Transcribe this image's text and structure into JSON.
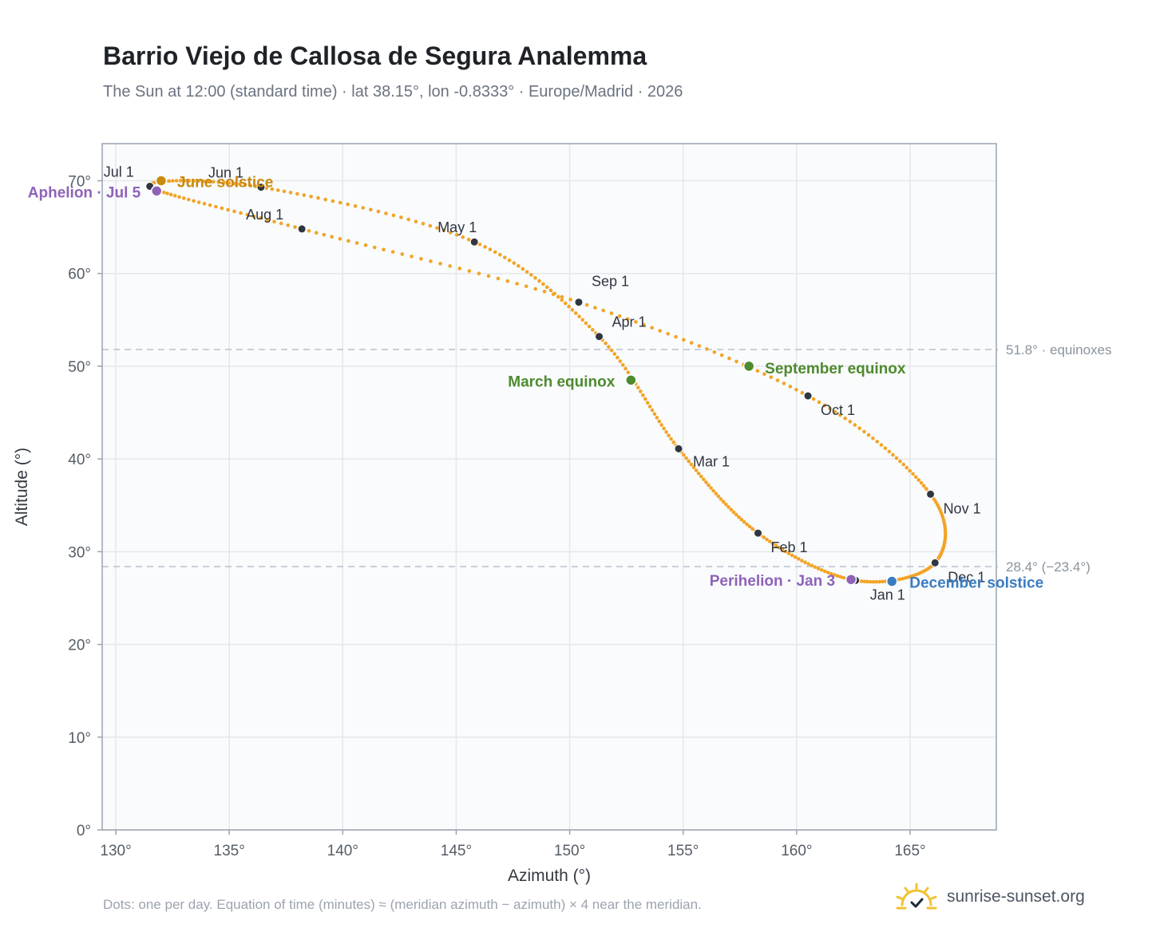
{
  "header": {
    "title": "Barrio Viejo de Callosa de Segura Analemma",
    "subtitle": "The Sun at 12:00 (standard time) · lat 38.15°, lon -0.8333° · Europe/Madrid · 2026"
  },
  "chart_data": {
    "type": "scatter",
    "xlabel": "Azimuth (°)",
    "ylabel": "Altitude (°)",
    "xlim": [
      129.4,
      168.8
    ],
    "ylim": [
      0,
      74
    ],
    "xticks": [
      130,
      135,
      140,
      145,
      150,
      155,
      160,
      165
    ],
    "yticks": [
      0,
      10,
      20,
      30,
      40,
      50,
      60,
      70
    ],
    "tick_suffix": "°",
    "grid": true,
    "curve": {
      "x": [
        162.6,
        158.3,
        154.8,
        151.3,
        145.8,
        136.4,
        131.5,
        138.2,
        150.4,
        160.5,
        165.9,
        166.1
      ],
      "y": [
        26.9,
        32.0,
        41.1,
        53.2,
        63.4,
        69.3,
        69.4,
        64.8,
        56.9,
        46.8,
        36.2,
        28.8
      ]
    },
    "months": [
      {
        "label": "Jan 1",
        "x": 162.6,
        "y": 26.9
      },
      {
        "label": "Feb 1",
        "x": 158.3,
        "y": 32.0
      },
      {
        "label": "Mar 1",
        "x": 154.8,
        "y": 41.1
      },
      {
        "label": "Apr 1",
        "x": 151.3,
        "y": 53.2
      },
      {
        "label": "May 1",
        "x": 145.8,
        "y": 63.4
      },
      {
        "label": "Jun 1",
        "x": 136.4,
        "y": 69.3
      },
      {
        "label": "Jul 1",
        "x": 131.5,
        "y": 69.4
      },
      {
        "label": "Aug 1",
        "x": 138.2,
        "y": 64.8
      },
      {
        "label": "Sep 1",
        "x": 150.4,
        "y": 56.9
      },
      {
        "label": "Oct 1",
        "x": 160.5,
        "y": 46.8
      },
      {
        "label": "Nov 1",
        "x": 165.9,
        "y": 36.2
      },
      {
        "label": "Dec 1",
        "x": 166.1,
        "y": 28.8
      }
    ],
    "events": [
      {
        "label": "June solstice",
        "x": 132.0,
        "y": 70.0,
        "color": "#c98a10"
      },
      {
        "label": "Aphelion · Jul 5",
        "x": 131.8,
        "y": 68.9,
        "color": "#8e63b8"
      },
      {
        "label": "March equinox",
        "x": 152.7,
        "y": 48.5,
        "color": "#4e8a2e"
      },
      {
        "label": "September equinox",
        "x": 157.9,
        "y": 50.0,
        "color": "#4e8a2e"
      },
      {
        "label": "Perihelion · Jan 3",
        "x": 162.4,
        "y": 27.0,
        "color": "#8e63b8"
      },
      {
        "label": "December solstice",
        "x": 164.2,
        "y": 26.8,
        "color": "#3b7cc0"
      }
    ],
    "reference_lines": [
      {
        "y": 51.8,
        "label": "51.8° · equinoxes"
      },
      {
        "y": 28.4,
        "label": "28.4° (−23.4°)"
      }
    ],
    "colors": {
      "curve": "#f2a427",
      "month_dot": "#2f3640",
      "grid": "#e5e7eb",
      "plot_bg": "#f9fbfd",
      "axis": "#9aa3ae"
    }
  },
  "footer": {
    "note": "Dots: one per day. Equation of time (minutes) ≈ (meridian azimuth − azimuth) × 4 near the meridian.",
    "brand": "sunrise-sunset.org",
    "brand_icon": "sun-icon"
  }
}
